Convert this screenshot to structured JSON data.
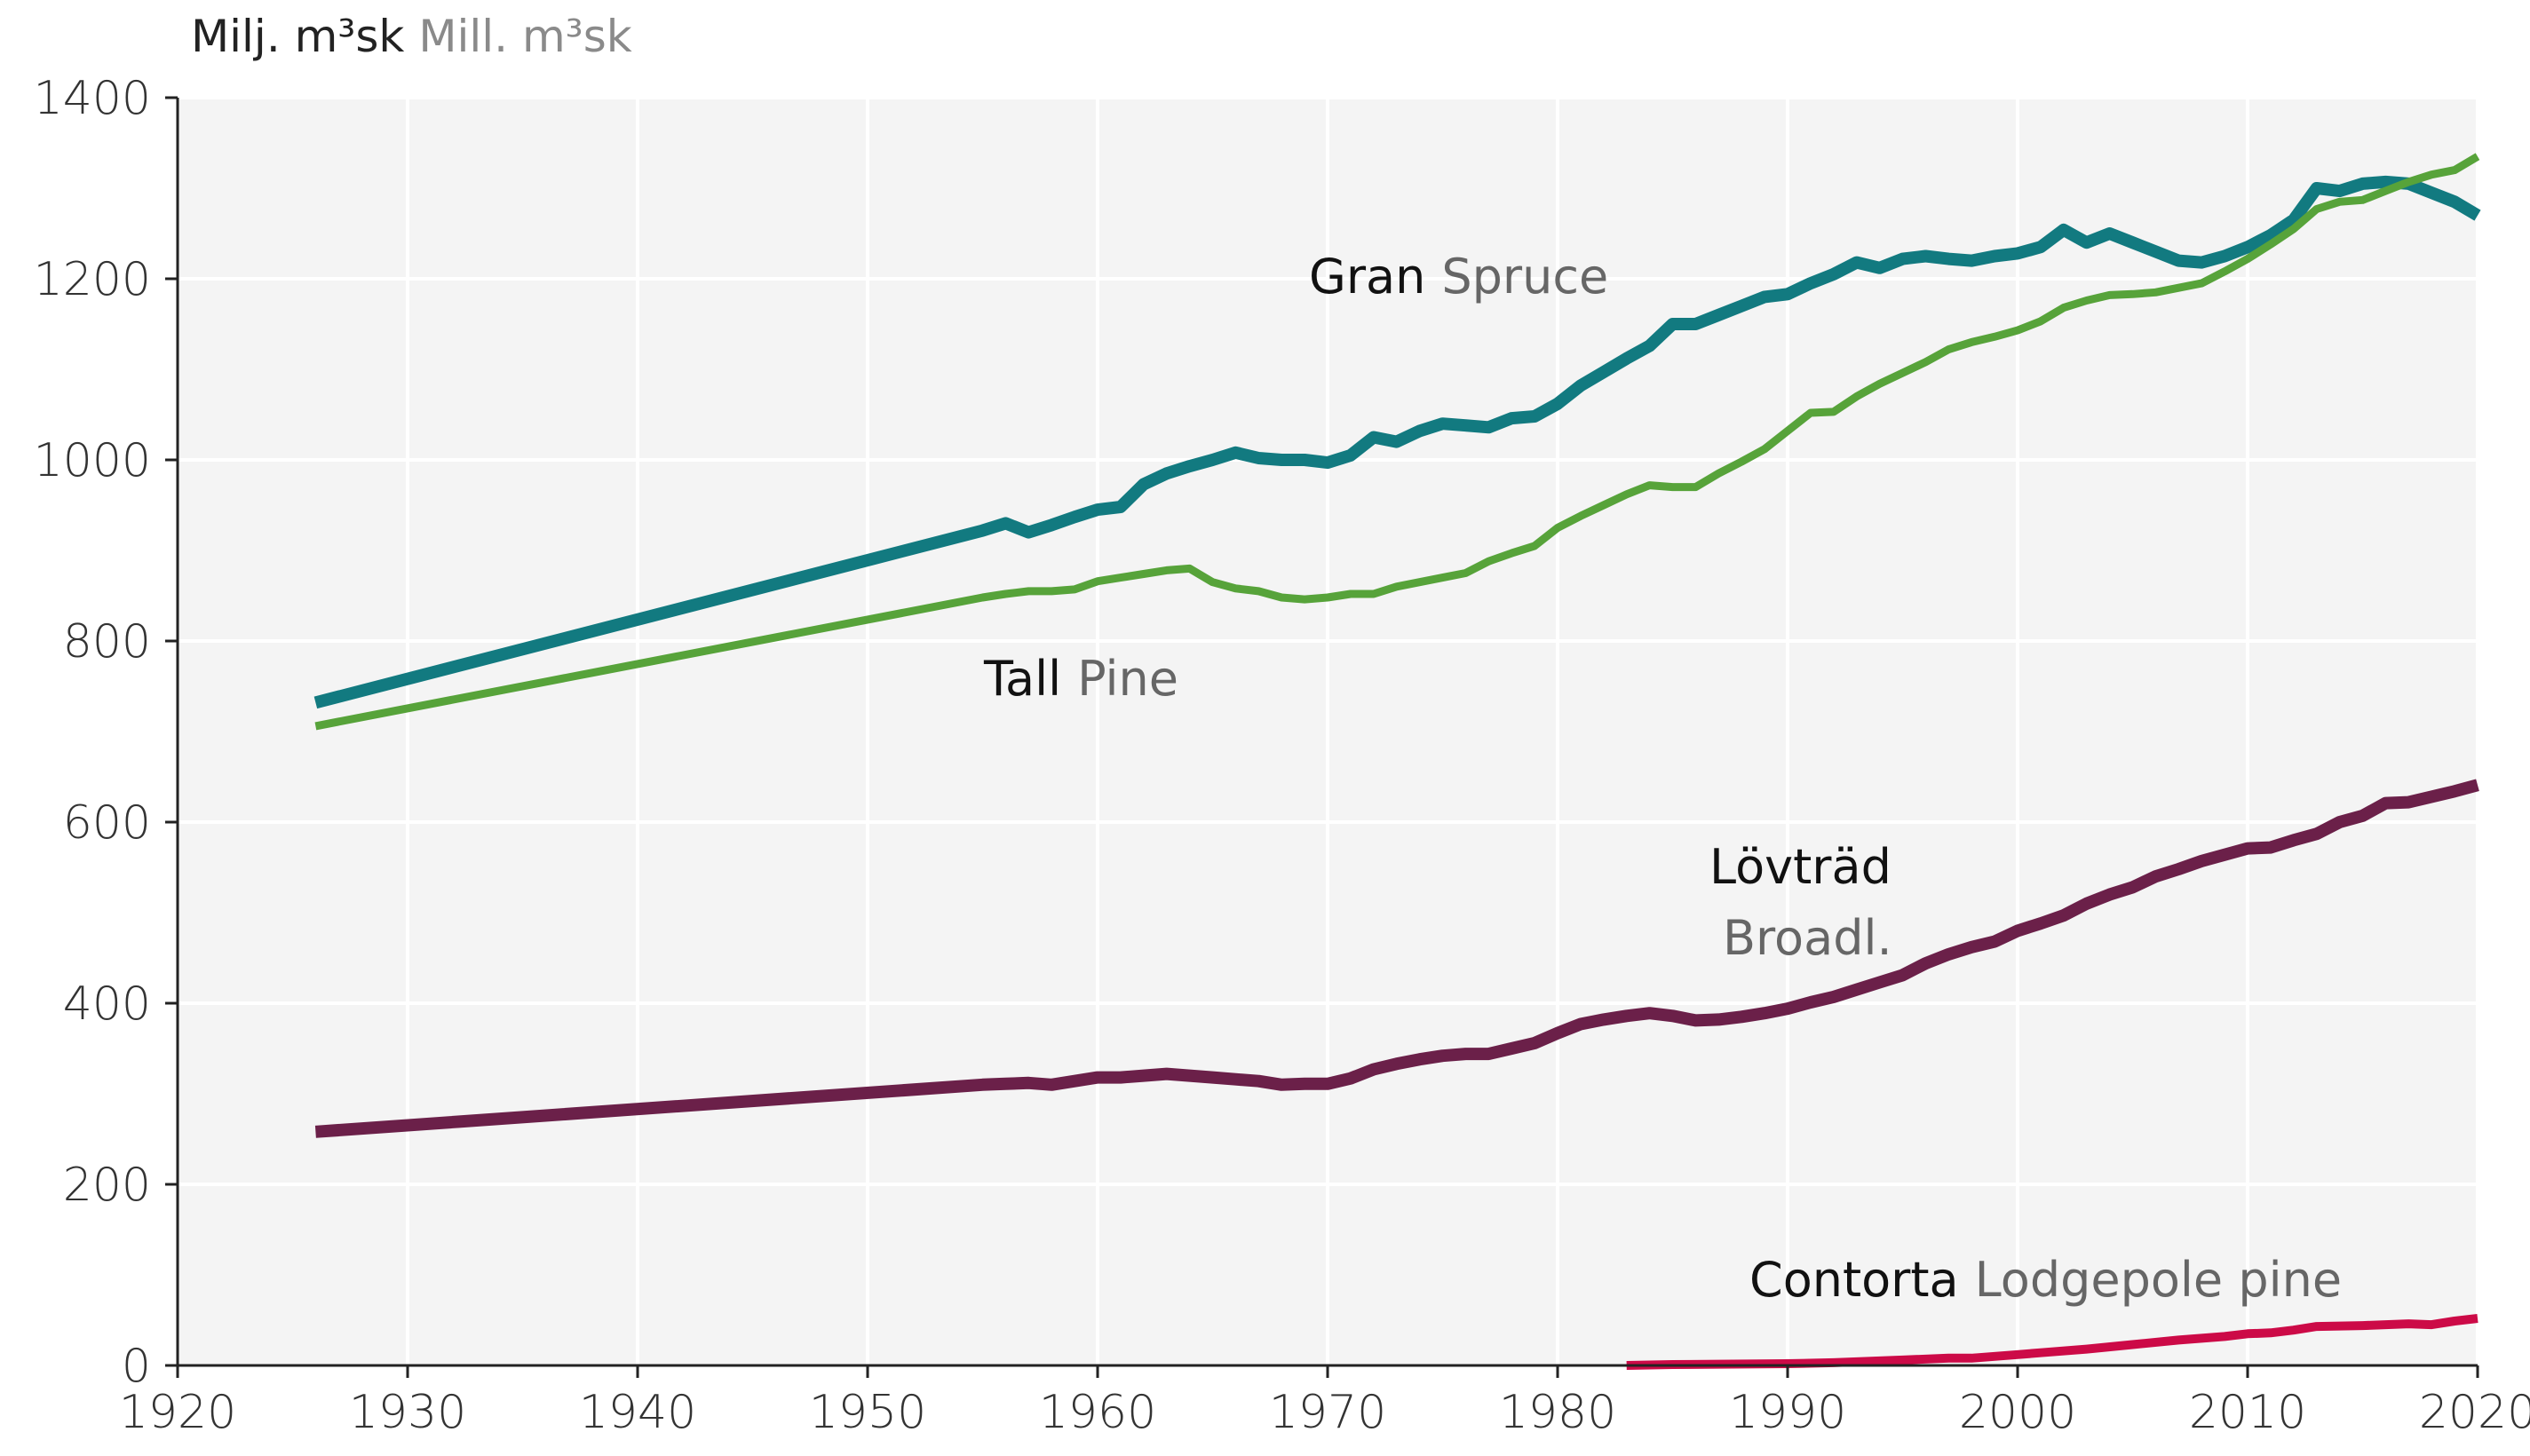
{
  "chart_data": {
    "type": "line",
    "unit_label": {
      "sv": "Milj. m³sk",
      "en": "Mill. m³sk"
    },
    "xlim": [
      1920,
      2020
    ],
    "ylim": [
      0,
      1400
    ],
    "x_ticks": [
      1920,
      1930,
      1940,
      1950,
      1960,
      1970,
      1980,
      1990,
      2000,
      2010,
      2020
    ],
    "y_ticks": [
      0,
      200,
      400,
      600,
      800,
      1000,
      1200,
      1400
    ],
    "grid": true,
    "series": [
      {
        "name": "Gran Spruce",
        "label_sv": "Gran",
        "label_en": "Spruce",
        "color": "#127a80",
        "points": [
          [
            1926,
            732
          ],
          [
            1955,
            922
          ],
          [
            1956,
            930
          ],
          [
            1957,
            920
          ],
          [
            1958,
            928
          ],
          [
            1959,
            937
          ],
          [
            1960,
            945
          ],
          [
            1961,
            948
          ],
          [
            1962,
            973
          ],
          [
            1963,
            985
          ],
          [
            1964,
            993
          ],
          [
            1965,
            1000
          ],
          [
            1966,
            1008
          ],
          [
            1967,
            1002
          ],
          [
            1968,
            1000
          ],
          [
            1969,
            1000
          ],
          [
            1970,
            997
          ],
          [
            1971,
            1005
          ],
          [
            1972,
            1025
          ],
          [
            1973,
            1020
          ],
          [
            1974,
            1032
          ],
          [
            1975,
            1040
          ],
          [
            1976,
            1038
          ],
          [
            1977,
            1036
          ],
          [
            1978,
            1046
          ],
          [
            1979,
            1048
          ],
          [
            1980,
            1062
          ],
          [
            1981,
            1082
          ],
          [
            1982,
            1097
          ],
          [
            1983,
            1112
          ],
          [
            1984,
            1126
          ],
          [
            1985,
            1150
          ],
          [
            1986,
            1150
          ],
          [
            1987,
            1160
          ],
          [
            1988,
            1170
          ],
          [
            1989,
            1180
          ],
          [
            1990,
            1183
          ],
          [
            1991,
            1195
          ],
          [
            1992,
            1205
          ],
          [
            1993,
            1218
          ],
          [
            1994,
            1212
          ],
          [
            1995,
            1222
          ],
          [
            1996,
            1225
          ],
          [
            1997,
            1222
          ],
          [
            1998,
            1220
          ],
          [
            1999,
            1225
          ],
          [
            2000,
            1228
          ],
          [
            2001,
            1235
          ],
          [
            2002,
            1254
          ],
          [
            2003,
            1240
          ],
          [
            2004,
            1250
          ],
          [
            2005,
            1240
          ],
          [
            2006,
            1230
          ],
          [
            2007,
            1220
          ],
          [
            2008,
            1218
          ],
          [
            2009,
            1225
          ],
          [
            2010,
            1235
          ],
          [
            2011,
            1248
          ],
          [
            2012,
            1265
          ],
          [
            2013,
            1300
          ],
          [
            2014,
            1297
          ],
          [
            2015,
            1305
          ],
          [
            2016,
            1307
          ],
          [
            2017,
            1305
          ],
          [
            2018,
            1295
          ],
          [
            2019,
            1285
          ],
          [
            2020,
            1270
          ]
        ]
      },
      {
        "name": "Tall Pine",
        "label_sv": "Tall",
        "label_en": "Pine",
        "color": "#57a33a",
        "points": [
          [
            1926,
            706
          ],
          [
            1955,
            848
          ],
          [
            1956,
            852
          ],
          [
            1957,
            855
          ],
          [
            1958,
            855
          ],
          [
            1959,
            857
          ],
          [
            1960,
            866
          ],
          [
            1961,
            870
          ],
          [
            1962,
            874
          ],
          [
            1963,
            878
          ],
          [
            1964,
            880
          ],
          [
            1965,
            865
          ],
          [
            1966,
            858
          ],
          [
            1967,
            855
          ],
          [
            1968,
            848
          ],
          [
            1969,
            846
          ],
          [
            1970,
            848
          ],
          [
            1971,
            852
          ],
          [
            1972,
            852
          ],
          [
            1973,
            860
          ],
          [
            1974,
            865
          ],
          [
            1975,
            870
          ],
          [
            1976,
            875
          ],
          [
            1977,
            888
          ],
          [
            1978,
            897
          ],
          [
            1979,
            905
          ],
          [
            1980,
            925
          ],
          [
            1981,
            938
          ],
          [
            1982,
            950
          ],
          [
            1983,
            962
          ],
          [
            1984,
            972
          ],
          [
            1985,
            970
          ],
          [
            1986,
            970
          ],
          [
            1987,
            985
          ],
          [
            1988,
            998
          ],
          [
            1989,
            1012
          ],
          [
            1990,
            1032
          ],
          [
            1991,
            1052
          ],
          [
            1992,
            1053
          ],
          [
            1993,
            1070
          ],
          [
            1994,
            1084
          ],
          [
            1995,
            1096
          ],
          [
            1996,
            1108
          ],
          [
            1997,
            1122
          ],
          [
            1998,
            1130
          ],
          [
            1999,
            1136
          ],
          [
            2000,
            1143
          ],
          [
            2001,
            1153
          ],
          [
            2002,
            1168
          ],
          [
            2003,
            1176
          ],
          [
            2004,
            1182
          ],
          [
            2005,
            1183
          ],
          [
            2006,
            1185
          ],
          [
            2007,
            1190
          ],
          [
            2008,
            1195
          ],
          [
            2009,
            1208
          ],
          [
            2010,
            1222
          ],
          [
            2011,
            1238
          ],
          [
            2012,
            1255
          ],
          [
            2013,
            1277
          ],
          [
            2014,
            1285
          ],
          [
            2015,
            1287
          ],
          [
            2016,
            1297
          ],
          [
            2017,
            1307
          ],
          [
            2018,
            1315
          ],
          [
            2019,
            1320
          ],
          [
            2020,
            1335
          ]
        ]
      },
      {
        "name": "Lövträd Broadl.",
        "label_sv": "Lövträd",
        "label_en": "Broadl.",
        "color": "#6b2049",
        "points": [
          [
            1926,
            258
          ],
          [
            1955,
            310
          ],
          [
            1956,
            311
          ],
          [
            1957,
            312
          ],
          [
            1958,
            310
          ],
          [
            1959,
            314
          ],
          [
            1960,
            318
          ],
          [
            1961,
            318
          ],
          [
            1962,
            320
          ],
          [
            1963,
            322
          ],
          [
            1964,
            320
          ],
          [
            1965,
            318
          ],
          [
            1966,
            316
          ],
          [
            1967,
            314
          ],
          [
            1968,
            310
          ],
          [
            1969,
            311
          ],
          [
            1970,
            311
          ],
          [
            1971,
            317
          ],
          [
            1972,
            327
          ],
          [
            1973,
            333
          ],
          [
            1974,
            338
          ],
          [
            1975,
            342
          ],
          [
            1976,
            344
          ],
          [
            1977,
            344
          ],
          [
            1978,
            350
          ],
          [
            1979,
            356
          ],
          [
            1980,
            367
          ],
          [
            1981,
            377
          ],
          [
            1982,
            382
          ],
          [
            1983,
            386
          ],
          [
            1984,
            389
          ],
          [
            1985,
            386
          ],
          [
            1986,
            381
          ],
          [
            1987,
            382
          ],
          [
            1988,
            385
          ],
          [
            1989,
            389
          ],
          [
            1990,
            394
          ],
          [
            1991,
            401
          ],
          [
            1992,
            407
          ],
          [
            1993,
            415
          ],
          [
            1994,
            423
          ],
          [
            1995,
            431
          ],
          [
            1996,
            444
          ],
          [
            1997,
            454
          ],
          [
            1998,
            462
          ],
          [
            1999,
            468
          ],
          [
            2000,
            480
          ],
          [
            2001,
            488
          ],
          [
            2002,
            497
          ],
          [
            2003,
            510
          ],
          [
            2004,
            520
          ],
          [
            2005,
            528
          ],
          [
            2006,
            540
          ],
          [
            2007,
            548
          ],
          [
            2008,
            557
          ],
          [
            2009,
            564
          ],
          [
            2010,
            571
          ],
          [
            2011,
            572
          ],
          [
            2012,
            580
          ],
          [
            2013,
            587
          ],
          [
            2014,
            600
          ],
          [
            2015,
            607
          ],
          [
            2016,
            621
          ],
          [
            2017,
            622
          ],
          [
            2018,
            628
          ],
          [
            2019,
            634
          ],
          [
            2020,
            641
          ]
        ]
      },
      {
        "name": "Contorta Lodgepole pine",
        "label_sv": "Contorta",
        "label_en": "Lodgepole pine",
        "color": "#cc0a47",
        "points": [
          [
            1983,
            0
          ],
          [
            1985,
            1
          ],
          [
            1990,
            2
          ],
          [
            1992,
            3
          ],
          [
            1995,
            6
          ],
          [
            1997,
            8
          ],
          [
            1998,
            8
          ],
          [
            2000,
            12
          ],
          [
            2001,
            14
          ],
          [
            2003,
            18
          ],
          [
            2005,
            23
          ],
          [
            2007,
            28
          ],
          [
            2009,
            32
          ],
          [
            2010,
            35
          ],
          [
            2011,
            36
          ],
          [
            2012,
            39
          ],
          [
            2013,
            43
          ],
          [
            2015,
            44
          ],
          [
            2016,
            45
          ],
          [
            2017,
            46
          ],
          [
            2018,
            45
          ],
          [
            2019,
            49
          ],
          [
            2020,
            52
          ]
        ]
      }
    ]
  }
}
